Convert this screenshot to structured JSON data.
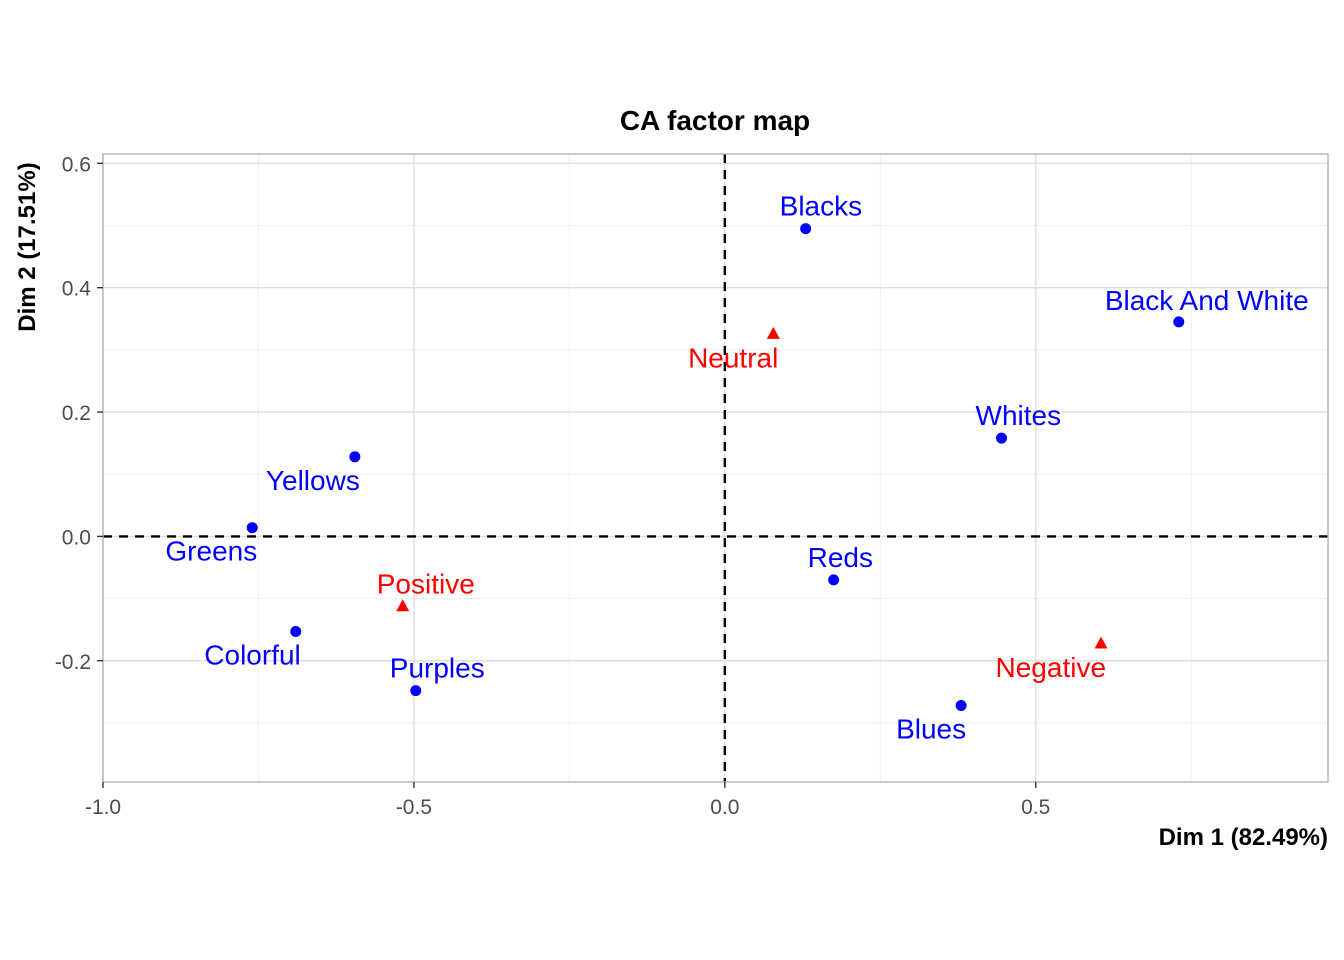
{
  "chart_data": {
    "type": "scatter",
    "title": "CA factor map",
    "xlabel": "Dim 1 (82.49%)",
    "ylabel": "Dim 2 (17.51%)",
    "xlim": [
      -1.0,
      0.97
    ],
    "ylim": [
      -0.395,
      0.615
    ],
    "xticks": [
      -1.0,
      -0.5,
      0.0,
      0.5
    ],
    "xtick_labels": [
      "-1.0",
      "-0.5",
      "0.0",
      "0.5"
    ],
    "yticks": [
      -0.2,
      0.0,
      0.2,
      0.4,
      0.6
    ],
    "ytick_labels": [
      "-0.2",
      "0.0",
      "0.2",
      "0.4",
      "0.6"
    ],
    "grid": true,
    "reference_lines": {
      "x": 0,
      "y": 0,
      "style": "dashed"
    },
    "series": [
      {
        "type": "columns",
        "color": "#0000ff",
        "marker": "circle",
        "points": [
          {
            "label": "Blacks",
            "x": 0.13,
            "y": 0.495,
            "label_pos": "above-right"
          },
          {
            "label": "Black And White",
            "x": 0.73,
            "y": 0.345,
            "label_pos": "above"
          },
          {
            "label": "Whites",
            "x": 0.445,
            "y": 0.158,
            "label_pos": "above-right"
          },
          {
            "label": "Yellows",
            "x": -0.595,
            "y": 0.128,
            "label_pos": "below-left"
          },
          {
            "label": "Greens",
            "x": -0.76,
            "y": 0.014,
            "label_pos": "below-left"
          },
          {
            "label": "Reds",
            "x": 0.175,
            "y": -0.07,
            "label_pos": "above-right"
          },
          {
            "label": "Colorful",
            "x": -0.69,
            "y": -0.153,
            "label_pos": "below-left"
          },
          {
            "label": "Purples",
            "x": -0.497,
            "y": -0.248,
            "label_pos": "above-right"
          },
          {
            "label": "Blues",
            "x": 0.38,
            "y": -0.272,
            "label_pos": "below-left"
          }
        ]
      },
      {
        "type": "rows",
        "color": "#ff0000",
        "marker": "triangle",
        "points": [
          {
            "label": "Neutral",
            "x": 0.078,
            "y": 0.325,
            "label_pos": "below-left"
          },
          {
            "label": "Positive",
            "x": -0.518,
            "y": -0.113,
            "label_pos": "above-right"
          },
          {
            "label": "Negative",
            "x": 0.605,
            "y": -0.173,
            "label_pos": "below-left"
          }
        ]
      }
    ]
  }
}
